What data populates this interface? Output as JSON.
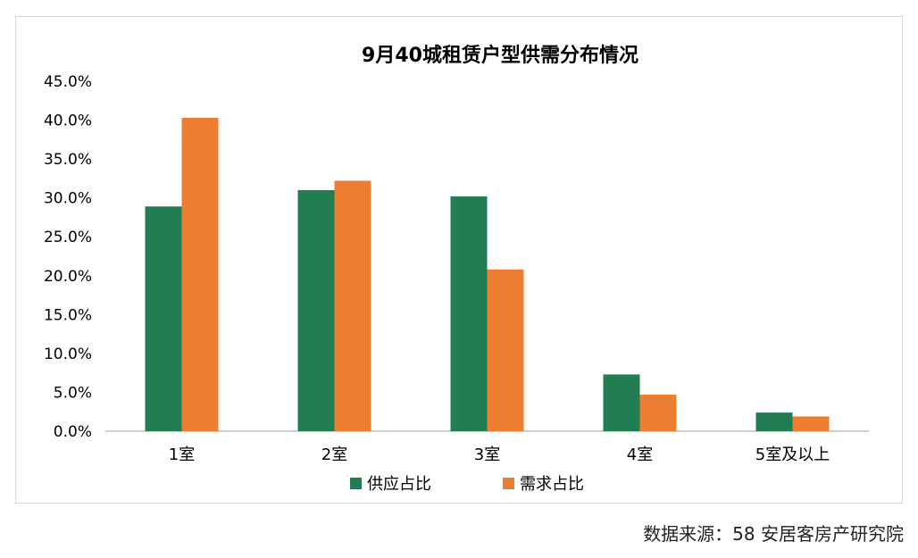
{
  "chart_data": {
    "type": "bar",
    "title": "9月40城租赁户型供需分布情况",
    "categories": [
      "1室",
      "2室",
      "3室",
      "4室",
      "5室及以上"
    ],
    "series": [
      {
        "name": "供应占比",
        "color": "#217E52",
        "values": [
          28.9,
          31.0,
          30.2,
          7.3,
          2.4
        ]
      },
      {
        "name": "需求占比",
        "color": "#ED7D31",
        "values": [
          40.3,
          32.2,
          20.8,
          4.7,
          1.9
        ]
      }
    ],
    "ylim": [
      0,
      45
    ],
    "yticks": [
      "0.0%",
      "5.0%",
      "10.0%",
      "15.0%",
      "20.0%",
      "25.0%",
      "30.0%",
      "35.0%",
      "40.0%",
      "45.0%"
    ],
    "legend_position": "bottom",
    "grid": false
  },
  "source": "数据来源：58 安居客房产研究院"
}
